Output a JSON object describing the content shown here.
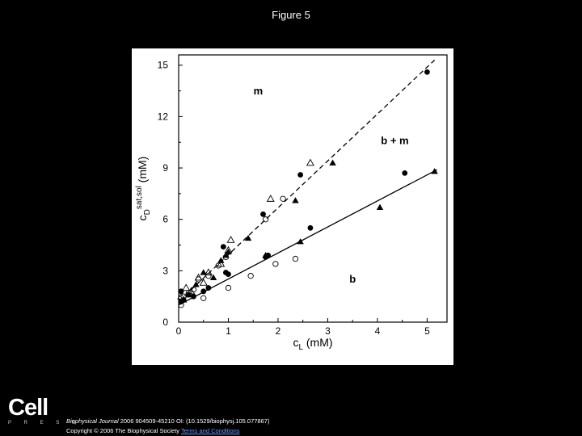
{
  "figure_title": "Figure 5",
  "publisher": {
    "logo_word": "Cell",
    "logo_sub": "P R E S S"
  },
  "citation": {
    "journal": "Biophysical Journal",
    "details": " 2006 904509-45210 OI: (10.1529/biophysj.105.077867)",
    "copyright": "Copyright © 2006 The Biophysical Society ",
    "terms": "Terms and Conditions"
  },
  "colors": {
    "background": "#000000",
    "panel": "#ffffff",
    "ink": "#000000"
  },
  "chart_data": {
    "type": "scatter",
    "xlabel_main": "c",
    "xlabel_sub": "L",
    "xlabel_unit": " (mM)",
    "ylabel_main": "c",
    "ylabel_sub": "D",
    "ylabel_sup": "sat,sol",
    "ylabel_unit": " (mM)",
    "xlim": [
      0,
      5.4
    ],
    "ylim": [
      0,
      15.6
    ],
    "xticks": [
      0,
      1,
      2,
      3,
      4,
      5
    ],
    "yticks": [
      0,
      3,
      6,
      9,
      12,
      15
    ],
    "grid": false,
    "annotations": [
      {
        "text": "m",
        "x": 1.6,
        "y": 13.3
      },
      {
        "text": "b + m",
        "x": 4.35,
        "y": 10.4
      },
      {
        "text": "b",
        "x": 3.5,
        "y": 2.3
      }
    ],
    "fits": [
      {
        "style": "dashed",
        "x": [
          0,
          5.15
        ],
        "y": [
          1.2,
          15.3
        ]
      },
      {
        "style": "solid",
        "x": [
          0,
          5.2
        ],
        "y": [
          1.0,
          8.9
        ]
      }
    ],
    "series": [
      {
        "marker": "filled-circle",
        "x": [
          0.05,
          0.05,
          0.1,
          0.2,
          0.3,
          0.5,
          0.6,
          0.9,
          0.95,
          1.0,
          1.75,
          1.8,
          1.7,
          2.45,
          2.65,
          4.55,
          5.0
        ],
        "y": [
          1.8,
          1.2,
          1.3,
          1.6,
          1.5,
          1.8,
          2.0,
          4.4,
          2.9,
          2.8,
          3.8,
          3.9,
          6.3,
          8.6,
          5.5,
          8.7,
          14.6
        ]
      },
      {
        "marker": "open-circle",
        "x": [
          0.05,
          0.1,
          0.2,
          0.3,
          0.4,
          0.5,
          0.6,
          0.8,
          0.95,
          1.0,
          1.45,
          1.75,
          1.95,
          2.1,
          2.35
        ],
        "y": [
          1.0,
          1.5,
          1.7,
          1.9,
          2.5,
          1.4,
          2.7,
          3.3,
          3.8,
          2.0,
          2.7,
          6.0,
          3.4,
          7.2,
          3.7
        ]
      },
      {
        "marker": "filled-triangle",
        "x": [
          0.1,
          0.2,
          0.35,
          0.5,
          0.7,
          0.85,
          0.95,
          1.0,
          1.4,
          1.75,
          2.35,
          2.45,
          3.1,
          4.05,
          5.15
        ],
        "y": [
          1.3,
          1.6,
          2.2,
          2.9,
          2.6,
          3.6,
          3.9,
          4.1,
          4.9,
          3.9,
          7.1,
          4.7,
          9.3,
          6.7,
          8.8
        ]
      },
      {
        "marker": "open-triangle",
        "x": [
          0.05,
          0.15,
          0.25,
          0.4,
          0.5,
          0.6,
          0.85,
          1.0,
          1.05,
          1.85,
          2.65
        ],
        "y": [
          1.5,
          2.0,
          1.8,
          2.6,
          2.3,
          2.9,
          3.4,
          4.2,
          4.8,
          7.2,
          9.3
        ]
      }
    ]
  }
}
